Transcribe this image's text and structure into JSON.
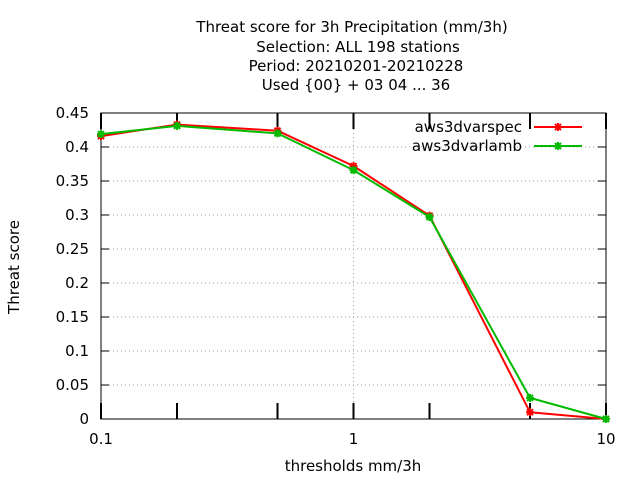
{
  "chart_data": {
    "type": "line",
    "title_lines": [
      "Threat score  for 3h Precipitation (mm/3h)",
      "Selection: ALL    198 stations",
      "Period: 20210201-20210228",
      "Used {00} + 03 04 ... 36"
    ],
    "xlabel": "thresholds mm/3h",
    "ylabel": "Threat score",
    "x_scale": "log",
    "xlim": [
      0.1,
      10
    ],
    "ylim": [
      0,
      0.45
    ],
    "x_ticks": [
      {
        "value": 0.1,
        "label": "0.1"
      },
      {
        "value": 1,
        "label": "1"
      },
      {
        "value": 10,
        "label": "10"
      }
    ],
    "x_minor_ticks": [
      0.2,
      0.5,
      2,
      5
    ],
    "y_ticks": [
      {
        "value": 0,
        "label": "0"
      },
      {
        "value": 0.05,
        "label": "0.05"
      },
      {
        "value": 0.1,
        "label": "0.1"
      },
      {
        "value": 0.15,
        "label": "0.15"
      },
      {
        "value": 0.2,
        "label": "0.2"
      },
      {
        "value": 0.25,
        "label": "0.25"
      },
      {
        "value": 0.3,
        "label": "0.3"
      },
      {
        "value": 0.35,
        "label": "0.35"
      },
      {
        "value": 0.4,
        "label": "0.4"
      },
      {
        "value": 0.45,
        "label": "0.45"
      }
    ],
    "grid": true,
    "legend_position": "top-right",
    "x": [
      0.1,
      0.2,
      0.5,
      1,
      2,
      5,
      10
    ],
    "series": [
      {
        "name": "aws3dvarspec",
        "color": "#ff0000",
        "values": [
          0.416,
          0.433,
          0.424,
          0.372,
          0.299,
          0.01,
          0.0
        ]
      },
      {
        "name": "aws3dvarlamb",
        "color": "#00bb00",
        "values": [
          0.419,
          0.431,
          0.42,
          0.366,
          0.297,
          0.031,
          0.0
        ]
      }
    ]
  }
}
